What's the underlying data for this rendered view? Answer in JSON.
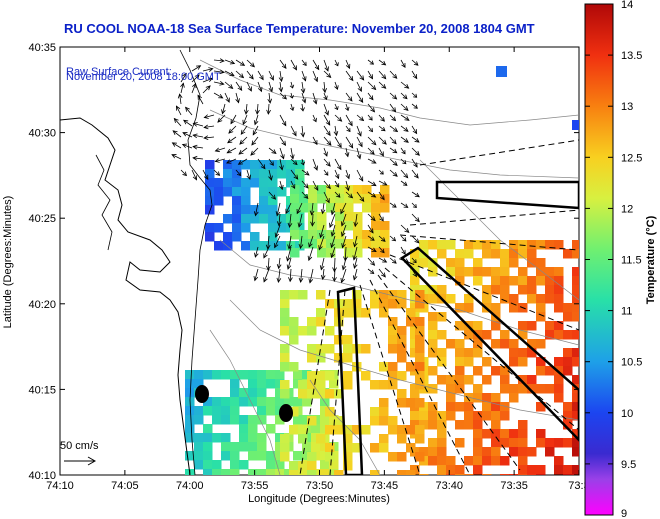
{
  "title": "RU COOL  NOAA-18  Sea Surface Temperature:  November 20, 2008 1804 GMT",
  "current_label": "Raw Surface Current:",
  "current_time": "November 20, 2008 18:00 GMT",
  "scale_label": "50 cm/s",
  "x_axis_label": "Longitude (Degrees:Minutes)",
  "y_axis_label": "Latitude (Degrees:Minutes)",
  "x_ticks": [
    "74:10",
    "74:05",
    "74:00",
    "73:55",
    "73:50",
    "73:45",
    "73:40",
    "73:35",
    "73:3"
  ],
  "y_ticks": [
    "40:35",
    "40:30",
    "40:25",
    "40:20",
    "40:15",
    "40:10"
  ],
  "colorbar": {
    "label": "Temperature (°C)",
    "min": 9,
    "max": 14,
    "ticks": [
      "14",
      "13.5",
      "13",
      "12.5",
      "12",
      "11.5",
      "11",
      "10.5",
      "10",
      "9.5",
      "9"
    ]
  },
  "colors": {
    "title": "#0b21c8",
    "info": "#1a2cc4",
    "land": "#ffffff"
  }
}
